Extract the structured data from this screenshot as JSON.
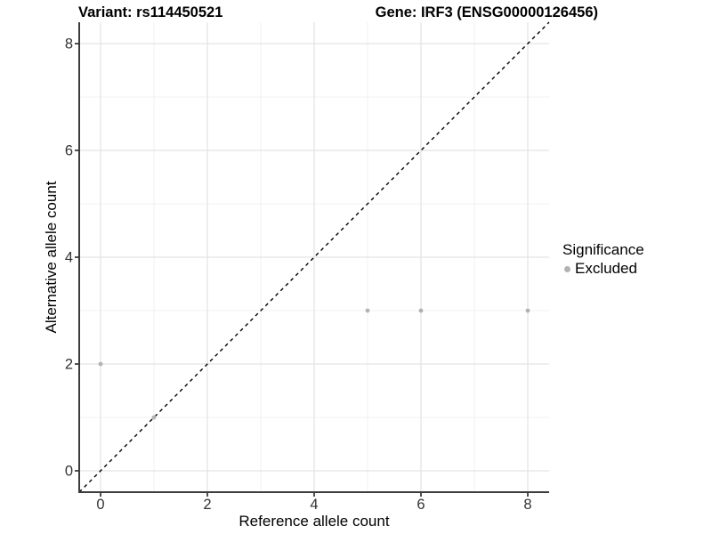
{
  "chart_data": {
    "type": "scatter",
    "variant_title": "Variant: rs114450521",
    "gene_title": "Gene: IRF3 (ENSG00000126456)",
    "xlabel": "Reference allele count",
    "ylabel": "Alternative allele count",
    "xlim": [
      -0.4,
      8.4
    ],
    "ylim": [
      -0.4,
      8.4
    ],
    "xticks": [
      0,
      2,
      4,
      6,
      8
    ],
    "yticks": [
      0,
      2,
      4,
      6,
      8
    ],
    "xminor": [
      1,
      3,
      5,
      7
    ],
    "yminor": [
      1,
      3,
      5,
      7
    ],
    "grid": "major+minor",
    "identity_line": {
      "style": "dashed",
      "color": "#000000",
      "from": [
        -0.4,
        -0.4
      ],
      "to": [
        8.4,
        8.4
      ]
    },
    "series": [
      {
        "name": "Excluded",
        "color": "#b2b2b2",
        "points": [
          [
            0,
            2
          ],
          [
            1,
            1
          ],
          [
            5,
            3
          ],
          [
            6,
            3
          ],
          [
            8,
            3
          ]
        ]
      }
    ],
    "legend": {
      "title": "Significance",
      "position": "right",
      "items": [
        {
          "label": "Excluded",
          "color": "#b2b2b2",
          "marker": "circle"
        }
      ]
    }
  },
  "colors": {
    "background": "#ffffff",
    "grid_major": "#e3e3e3",
    "grid_minor": "#f1f1f1",
    "axis_line": "#3c3c3c",
    "tick_label": "#333333",
    "title_text": "#000000"
  }
}
